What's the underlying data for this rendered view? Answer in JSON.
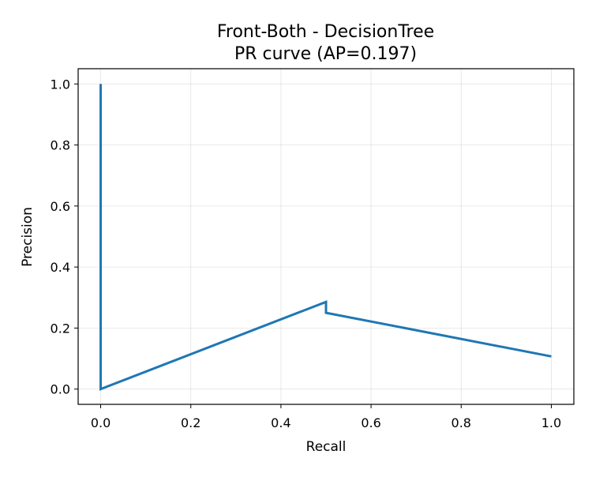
{
  "chart_data": {
    "type": "line",
    "title": "Front-Both - DecisionTree",
    "subtitle": "PR curve (AP=0.197)",
    "xlabel": "Recall",
    "ylabel": "Precision",
    "xlim": [
      -0.05,
      1.05
    ],
    "ylim": [
      -0.05,
      1.05
    ],
    "xticks": [
      "0.0",
      "0.2",
      "0.4",
      "0.6",
      "0.8",
      "1.0"
    ],
    "yticks": [
      "0.0",
      "0.2",
      "0.4",
      "0.6",
      "0.8",
      "1.0"
    ],
    "grid": true,
    "legend": "none",
    "series": [
      {
        "color": "#1f77b4",
        "x": [
          0.0,
          0.0,
          0.5,
          0.5,
          1.0
        ],
        "y": [
          1.0,
          0.0,
          0.2857,
          0.25,
          0.1071
        ]
      }
    ]
  }
}
